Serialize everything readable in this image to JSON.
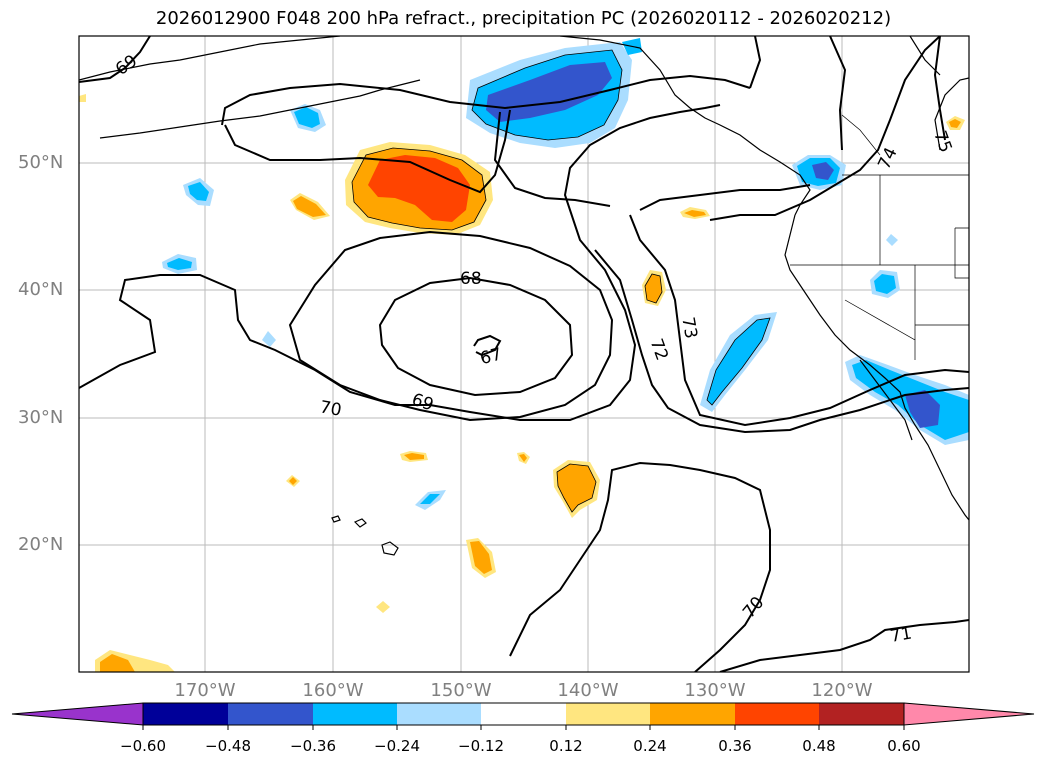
{
  "title": "2026012900 F048 200 hPa refract., precipitation PC (2026020112 - 2026020212)",
  "axes": {
    "lat_labels": [
      "50°N",
      "40°N",
      "30°N",
      "20°N"
    ],
    "lon_labels": [
      "170°W",
      "160°W",
      "150°W",
      "140°W",
      "130°W",
      "120°W"
    ]
  },
  "contour_labels": [
    "69",
    "68",
    "67",
    "70",
    "69",
    "73",
    "72",
    "74",
    "75",
    "70",
    "71"
  ],
  "colorbar": {
    "ticks": [
      "−0.60",
      "−0.48",
      "−0.36",
      "−0.24",
      "−0.12",
      "0.12",
      "0.24",
      "0.36",
      "0.48",
      "0.60"
    ],
    "colors": {
      "under": "#9933cc",
      "bins": [
        "#000099",
        "#3355cc",
        "#00bbff",
        "#aaddff",
        "#ffffff",
        "#ffe680",
        "#ffa500",
        "#ff4400",
        "#b22222"
      ],
      "over": "#ff88aa"
    }
  }
}
